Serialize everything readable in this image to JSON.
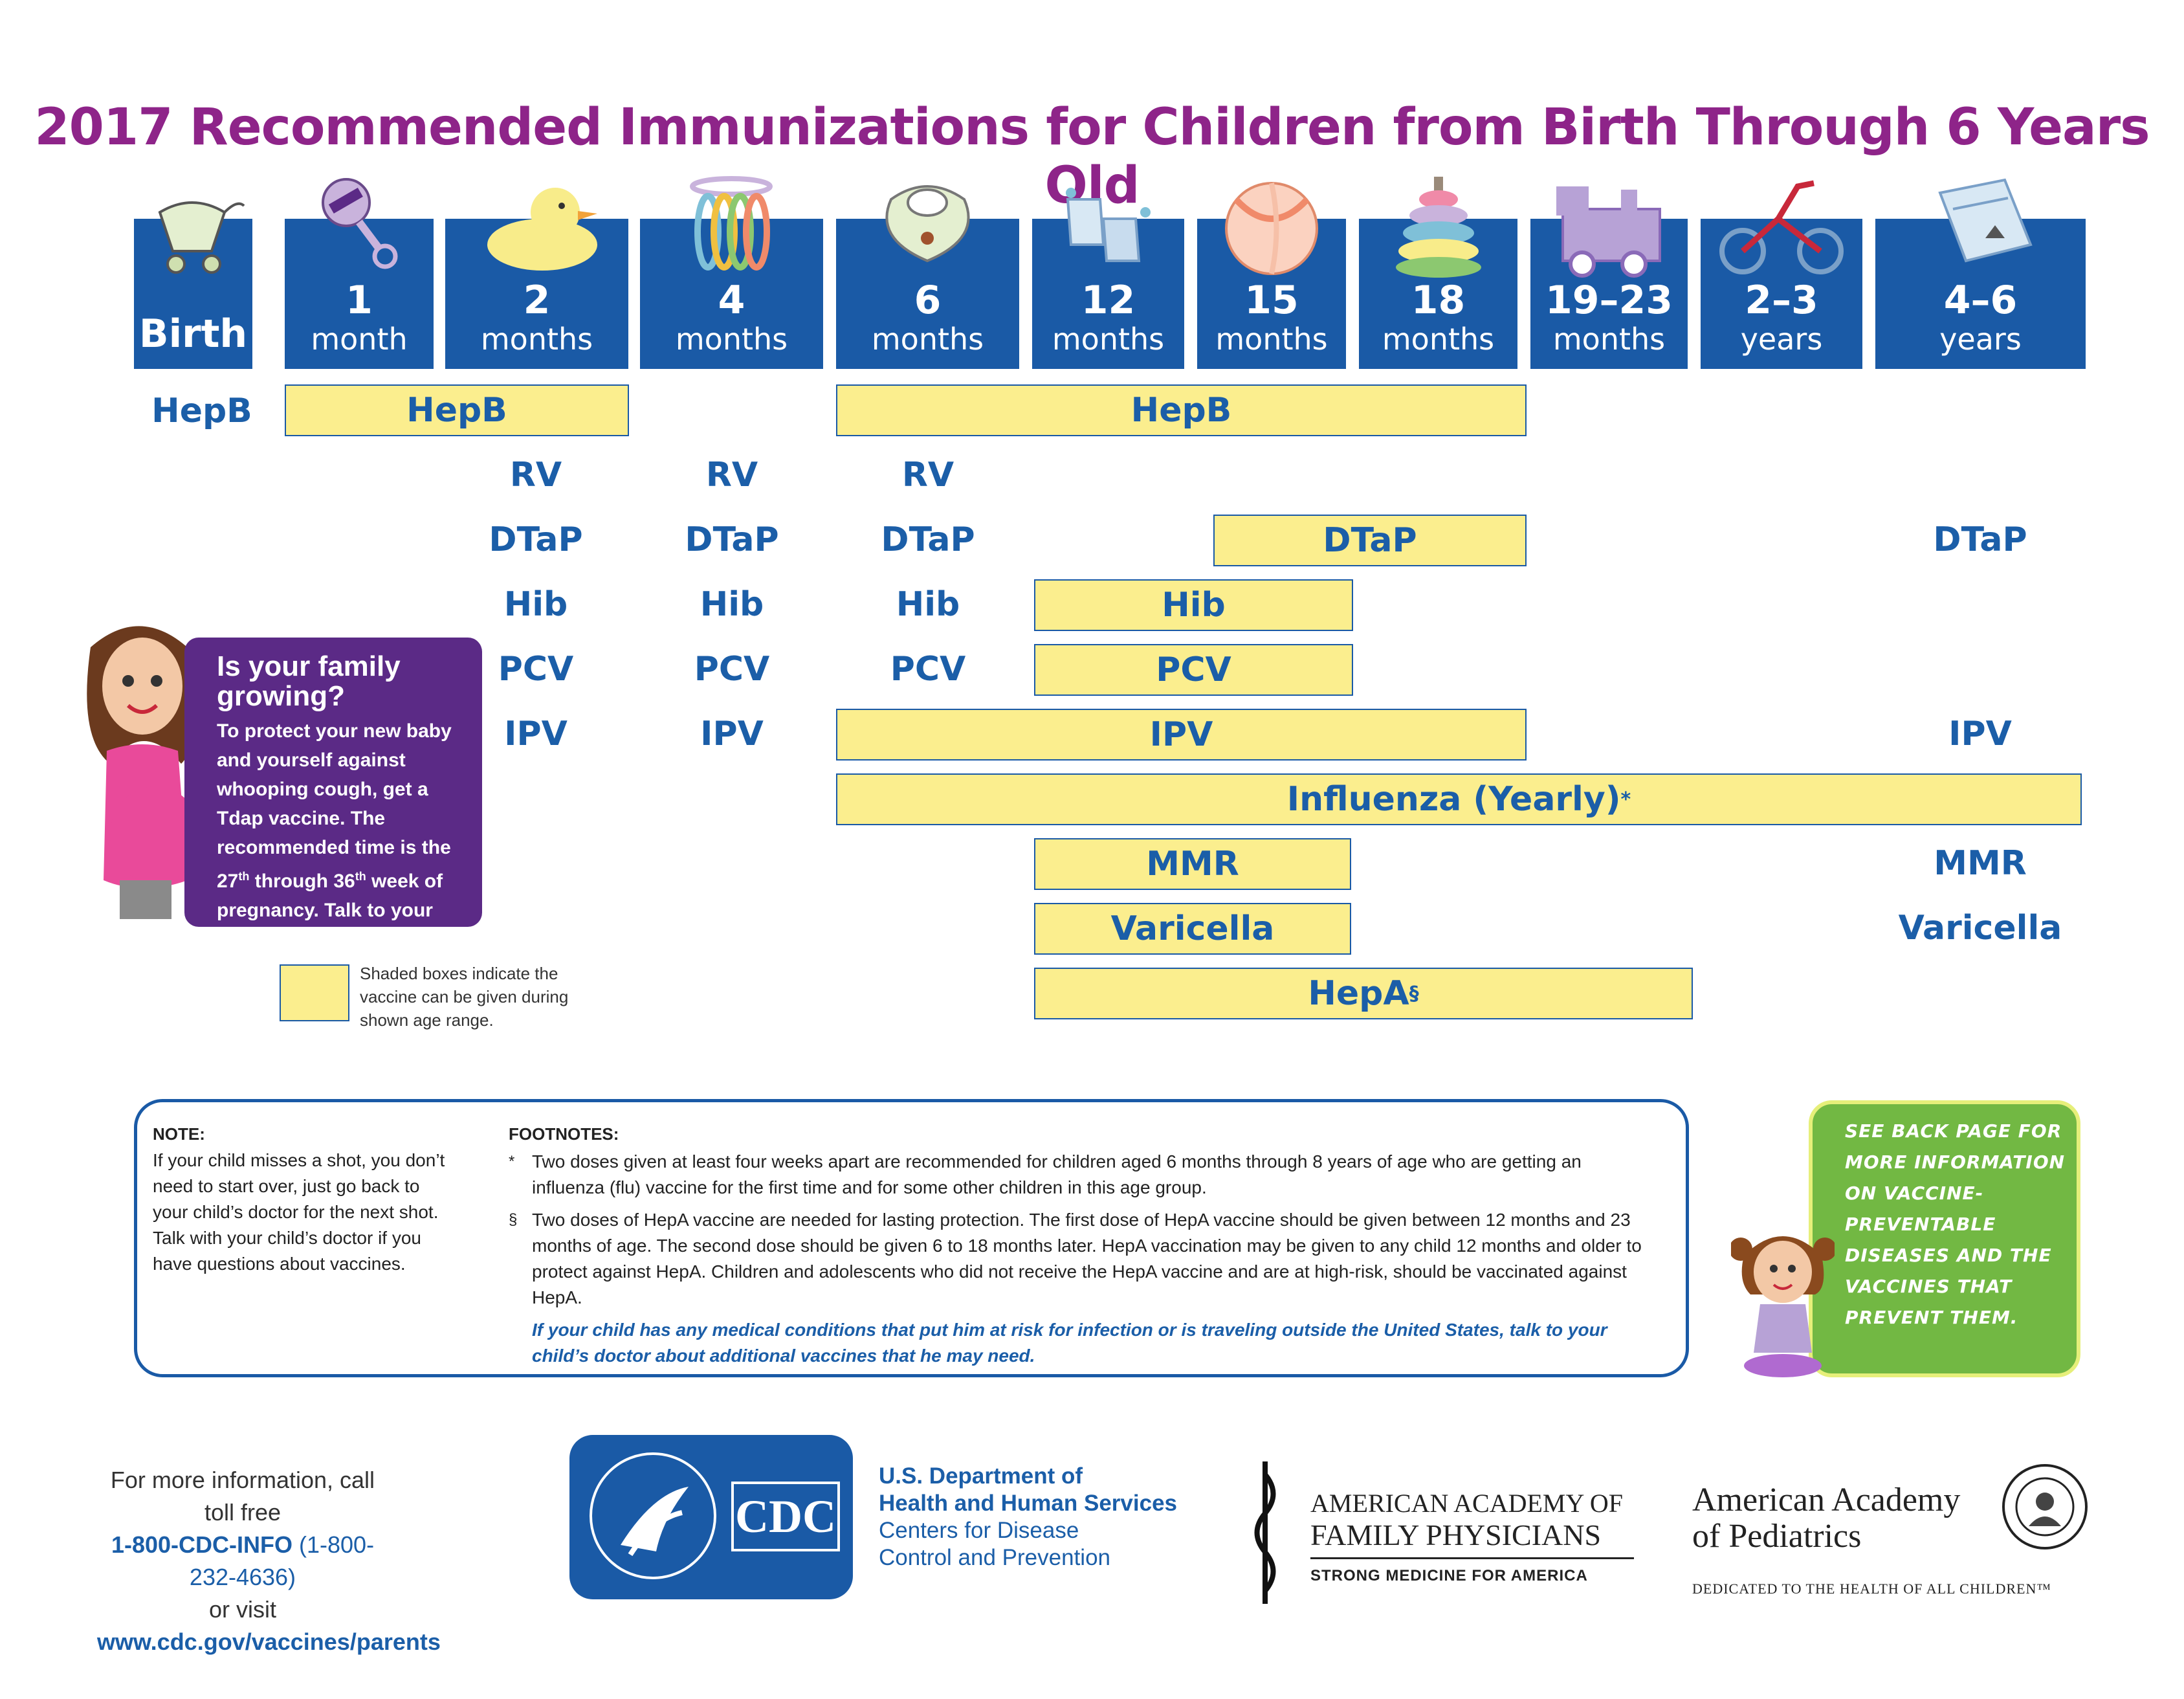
{
  "title": "2017 Recommended Immunizations for Children from Birth Through 6 Years Old",
  "ages": [
    {
      "num": "Birth",
      "unit": ""
    },
    {
      "num": "1",
      "unit": "month"
    },
    {
      "num": "2",
      "unit": "months"
    },
    {
      "num": "4",
      "unit": "months"
    },
    {
      "num": "6",
      "unit": "months"
    },
    {
      "num": "12",
      "unit": "months"
    },
    {
      "num": "15",
      "unit": "months"
    },
    {
      "num": "18",
      "unit": "months"
    },
    {
      "num": "19–23",
      "unit": "months"
    },
    {
      "num": "2–3",
      "unit": "years"
    },
    {
      "num": "4–6",
      "unit": "years"
    }
  ],
  "age_icons": [
    "stroller-icon",
    "rattle-icon",
    "duck-icon",
    "teething-rings-icon",
    "bib-icon",
    "booties-icon",
    "ball-icon",
    "stacking-rings-icon",
    "train-icon",
    "tricycle-icon",
    "book-icon"
  ],
  "vaccines": {
    "hepb": "HepB",
    "rv": "RV",
    "dtap": "DTaP",
    "hib": "Hib",
    "pcv": "PCV",
    "ipv": "IPV",
    "influenza": "Influenza (Yearly)",
    "influenza_mark": "*",
    "mmr": "MMR",
    "varicella": "Varicella",
    "hepa": "HepA",
    "hepa_mark": "§"
  },
  "pregnancy": {
    "heading": "Is your family growing?",
    "lead": "To protect your new baby and yourself against whooping cough, get a Tdap vaccine. The recommended time is the 27",
    "sup1": "th",
    "mid": " through 36",
    "sup2": "th",
    "tail": " week of pregnancy. Talk to your doctor for more details."
  },
  "legend": "Shaded boxes indicate the vaccine can be given during shown age range.",
  "note": {
    "heading": "NOTE:",
    "body": "If your child misses a shot, you don’t need to start over, just go back to your child’s doctor for the next shot. Talk with your child’s doctor if you have questions about vaccines."
  },
  "footnotes": {
    "heading": "FOOTNOTES:",
    "items": [
      {
        "mark": "*",
        "text": "Two doses given at least four weeks apart are recommended for children aged 6 months through 8 years of age who are getting an influenza (flu) vaccine for the first time and for some other children in this age group."
      },
      {
        "mark": "§",
        "text": "Two doses of HepA vaccine are needed for lasting protection. The first dose of HepA vaccine should be given between 12 months and 23 months of age. The second dose should be given 6 to 18 months later.   HepA vaccination may be given to any child 12 months and older to protect against HepA. Children and adolescents who did not receive the HepA vaccine and are at high-risk, should be vaccinated against HepA."
      }
    ],
    "blue": "If your child has any medical conditions that put him at risk for infection or is traveling outside the United States, talk to your child’s doctor about additional vaccines that he may need."
  },
  "back_page": "SEE BACK PAGE FOR MORE INFORMATION ON VACCINE-PREVENTABLE DISEASES AND THE VACCINES THAT PREVENT THEM.",
  "contact": {
    "line1": "For more information, call toll free",
    "phone": "1-800-CDC-INFO",
    "phone_num": "(1-800-232-4636)",
    "line3": "or visit",
    "url": "www.cdc.gov/vaccines/parents"
  },
  "hhs": {
    "line1": "U.S. Department of",
    "line2": "Health and Human Services",
    "line3": "Centers for Disease",
    "line4": "Control and Prevention",
    "cdc_logo": "CDC",
    "seal_text": "DEPARTMENT OF HEALTH & HUMAN SERVICES·USA"
  },
  "aafp": {
    "line1": "AMERICAN ACADEMY OF",
    "line2": "FAMILY PHYSICIANS",
    "tagline": "STRONG MEDICINE FOR AMERICA"
  },
  "aap": {
    "line1": "American Academy",
    "line2": "of Pediatrics",
    "tagline": "DEDICATED TO THE HEALTH OF ALL CHILDREN™",
    "seal_text": "THE AMERICAN ACADEMY OF PEDIATRICS"
  },
  "colors": {
    "title": "#8e2489",
    "header_blue": "#1a5aa6",
    "bar_fill": "#fbee8e",
    "pregnancy_box": "#5b2a86",
    "green_box": "#72b843"
  }
}
